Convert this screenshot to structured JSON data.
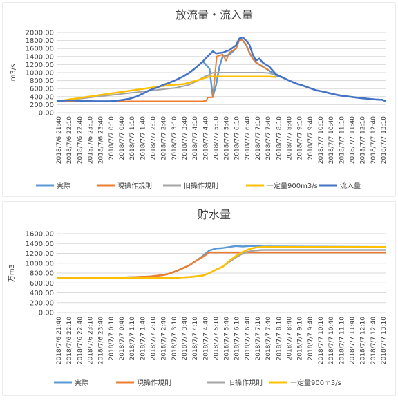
{
  "chart_data": [
    {
      "type": "line",
      "title": "放流量・流入量",
      "xlabel": "",
      "ylabel": "m3/s",
      "ylim": [
        0,
        2000
      ],
      "ystep": 200,
      "y_tick_labels": [
        "0.00",
        "200.00",
        "400.00",
        "600.00",
        "800.00",
        "1000.00",
        "1200.00",
        "1400.00",
        "1600.00",
        "1800.00",
        "2000.00"
      ],
      "x_tick_labels": [
        "2018/7/6 21:40",
        "2018/7/6 22:10",
        "2018/7/6 22:40",
        "2018/7/6 23:10",
        "2018/7/6 23:40",
        "2018/7/7 0:10",
        "2018/7/7 0:40",
        "2018/7/7 1:10",
        "2018/7/7 1:40",
        "2018/7/7 2:10",
        "2018/7/7 2:40",
        "2018/7/7 3:10",
        "2018/7/7 3:40",
        "2018/7/7 4:10",
        "2018/7/7 4:40",
        "2018/7/7 5:10",
        "2018/7/7 5:40",
        "2018/7/7 6:10",
        "2018/7/7 6:40",
        "2018/7/7 7:10",
        "2018/7/7 7:40",
        "2018/7/7 8:10",
        "2018/7/7 8:40",
        "2018/7/7 9:10",
        "2018/7/7 9:40",
        "2018/7/7 10:10",
        "2018/7/7 10:40",
        "2018/7/7 11:10",
        "2018/7/7 11:40",
        "2018/7/7 12:10",
        "2018/7/7 12:40",
        "2018/7/7 13:10"
      ],
      "grid": true,
      "legend": "bottom",
      "series": [
        {
          "name": "実際",
          "color": "#5B9BD5",
          "width": 2.5,
          "points": [
            [
              0,
              290
            ],
            [
              2,
              295
            ],
            [
              4,
              300
            ],
            [
              6,
              300
            ],
            [
              8,
              290
            ],
            [
              10,
              285
            ],
            [
              12,
              285
            ],
            [
              14,
              285
            ],
            [
              16,
              285
            ],
            [
              18,
              300
            ],
            [
              20,
              320
            ],
            [
              22,
              350
            ],
            [
              24,
              400
            ],
            [
              26,
              480
            ],
            [
              28,
              560
            ],
            [
              30,
              620
            ],
            [
              32,
              690
            ],
            [
              34,
              750
            ],
            [
              36,
              820
            ],
            [
              38,
              900
            ],
            [
              40,
              1000
            ],
            [
              42,
              1130
            ],
            [
              44,
              1280
            ],
            [
              46,
              1100
            ],
            [
              47,
              400
            ],
            [
              48,
              700
            ],
            [
              49,
              1150
            ],
            [
              50,
              1400
            ],
            [
              52,
              1450
            ],
            [
              54,
              1600
            ],
            [
              55,
              1820
            ],
            [
              56,
              1800
            ],
            [
              57,
              1700
            ],
            [
              58,
              1500
            ],
            [
              59,
              1350
            ],
            [
              60,
              1250
            ],
            [
              62,
              1150
            ],
            [
              64,
              1050
            ],
            [
              66,
              930
            ],
            [
              68,
              880
            ],
            [
              70,
              800
            ],
            [
              72,
              730
            ],
            [
              74,
              680
            ],
            [
              76,
              620
            ],
            [
              78,
              560
            ],
            [
              80,
              530
            ],
            [
              82,
              490
            ],
            [
              84,
              450
            ],
            [
              86,
              420
            ],
            [
              88,
              400
            ],
            [
              90,
              380
            ],
            [
              92,
              360
            ],
            [
              94,
              345
            ],
            [
              96,
              330
            ],
            [
              98,
              320
            ],
            [
              99,
              290
            ]
          ]
        },
        {
          "name": "現操作規則",
          "color": "#ED7D31",
          "width": 2,
          "points": [
            [
              0,
              285
            ],
            [
              44,
              285
            ],
            [
              45,
              300
            ],
            [
              45.5,
              380
            ],
            [
              47,
              385
            ],
            [
              48.2,
              1400
            ],
            [
              49,
              1430
            ],
            [
              50,
              1450
            ],
            [
              51,
              1300
            ],
            [
              52,
              1500
            ],
            [
              54,
              1600
            ],
            [
              55,
              1820
            ],
            [
              56,
              1800
            ],
            [
              57,
              1700
            ],
            [
              58,
              1500
            ],
            [
              59,
              1350
            ],
            [
              60,
              1250
            ],
            [
              62,
              1150
            ],
            [
              64,
              1050
            ]
          ]
        },
        {
          "name": "旧操作規則",
          "color": "#A5A5A5",
          "width": 2,
          "points": [
            [
              0,
              285
            ],
            [
              36,
              620
            ],
            [
              40,
              700
            ],
            [
              42,
              780
            ],
            [
              44,
              880
            ],
            [
              46,
              950
            ],
            [
              47,
              1000
            ],
            [
              62,
              1000
            ],
            [
              64,
              990
            ],
            [
              66,
              930
            ]
          ]
        },
        {
          "name": "一定量900m3/s",
          "color": "#FFC000",
          "width": 2.5,
          "points": [
            [
              0,
              285
            ],
            [
              34,
              690
            ],
            [
              36,
              700
            ],
            [
              38,
              710
            ],
            [
              40,
              750
            ],
            [
              42,
              800
            ],
            [
              44,
              850
            ],
            [
              46,
              900
            ],
            [
              62,
              900
            ],
            [
              64,
              900
            ],
            [
              66,
              890
            ]
          ]
        },
        {
          "name": "流入量",
          "color": "#4472C4",
          "width": 2.5,
          "points": [
            [
              0,
              290
            ],
            [
              2,
              300
            ],
            [
              4,
              310
            ],
            [
              6,
              300
            ],
            [
              8,
              295
            ],
            [
              10,
              290
            ],
            [
              12,
              285
            ],
            [
              14,
              285
            ],
            [
              16,
              285
            ],
            [
              18,
              300
            ],
            [
              20,
              320
            ],
            [
              22,
              350
            ],
            [
              24,
              400
            ],
            [
              26,
              480
            ],
            [
              28,
              560
            ],
            [
              30,
              620
            ],
            [
              32,
              690
            ],
            [
              34,
              750
            ],
            [
              36,
              820
            ],
            [
              38,
              900
            ],
            [
              40,
              1000
            ],
            [
              42,
              1130
            ],
            [
              44,
              1280
            ],
            [
              46,
              1450
            ],
            [
              47,
              1530
            ],
            [
              48,
              1480
            ],
            [
              50,
              1500
            ],
            [
              52,
              1560
            ],
            [
              54,
              1680
            ],
            [
              55,
              1850
            ],
            [
              56,
              1880
            ],
            [
              57,
              1800
            ],
            [
              58,
              1700
            ],
            [
              59,
              1450
            ],
            [
              60,
              1300
            ],
            [
              61,
              1350
            ],
            [
              62,
              1250
            ],
            [
              64,
              1150
            ],
            [
              66,
              960
            ],
            [
              68,
              880
            ],
            [
              70,
              800
            ],
            [
              72,
              730
            ],
            [
              74,
              680
            ],
            [
              76,
              620
            ],
            [
              78,
              560
            ],
            [
              80,
              530
            ],
            [
              82,
              490
            ],
            [
              84,
              450
            ],
            [
              86,
              420
            ],
            [
              88,
              400
            ],
            [
              90,
              380
            ],
            [
              92,
              360
            ],
            [
              94,
              345
            ],
            [
              96,
              330
            ],
            [
              98,
              320
            ],
            [
              99,
              290
            ]
          ]
        }
      ]
    },
    {
      "type": "line",
      "title": "貯水量",
      "xlabel": "",
      "ylabel": "万m3",
      "ylim": [
        0,
        1600
      ],
      "ystep": 200,
      "y_tick_labels": [
        "0.00",
        "200.00",
        "400.00",
        "600.00",
        "800.00",
        "1000.00",
        "1200.00",
        "1400.00",
        "1600.00"
      ],
      "x_tick_labels": [
        "2018/7/6 21:40",
        "2018/7/6 22:10",
        "2018/7/6 22:40",
        "2018/7/6 23:10",
        "2018/7/6 23:40",
        "2018/7/7 0:10",
        "2018/7/7 0:40",
        "2018/7/7 1:10",
        "2018/7/7 1:40",
        "2018/7/7 2:10",
        "2018/7/7 2:40",
        "2018/7/7 3:10",
        "2018/7/7 3:40",
        "2018/7/7 4:10",
        "2018/7/7 4:40",
        "2018/7/7 5:10",
        "2018/7/7 5:40",
        "2018/7/7 6:10",
        "2018/7/7 6:40",
        "2018/7/7 7:10",
        "2018/7/7 7:40",
        "2018/7/7 8:10",
        "2018/7/7 8:40",
        "2018/7/7 9:10",
        "2018/7/7 9:40",
        "2018/7/7 10:10",
        "2018/7/7 10:40",
        "2018/7/7 11:10",
        "2018/7/7 11:40",
        "2018/7/7 12:10",
        "2018/7/7 12:40",
        "2018/7/7 13:10"
      ],
      "grid": true,
      "legend": "bottom",
      "series": [
        {
          "name": "実際",
          "color": "#5B9BD5",
          "width": 2.5,
          "points": [
            [
              0,
              700
            ],
            [
              10,
              705
            ],
            [
              20,
              710
            ],
            [
              28,
              730
            ],
            [
              32,
              760
            ],
            [
              34,
              790
            ],
            [
              36,
              840
            ],
            [
              38,
              900
            ],
            [
              40,
              960
            ],
            [
              42,
              1050
            ],
            [
              44,
              1150
            ],
            [
              46,
              1260
            ],
            [
              48,
              1300
            ],
            [
              50,
              1310
            ],
            [
              52,
              1330
            ],
            [
              54,
              1350
            ],
            [
              56,
              1340
            ],
            [
              58,
              1350
            ],
            [
              60,
              1350
            ],
            [
              62,
              1340
            ],
            [
              99,
              1330
            ]
          ]
        },
        {
          "name": "現操作規則",
          "color": "#ED7D31",
          "width": 2.5,
          "points": [
            [
              0,
              695
            ],
            [
              10,
              700
            ],
            [
              20,
              710
            ],
            [
              28,
              730
            ],
            [
              32,
              760
            ],
            [
              34,
              790
            ],
            [
              36,
              840
            ],
            [
              38,
              900
            ],
            [
              40,
              960
            ],
            [
              42,
              1050
            ],
            [
              44,
              1130
            ],
            [
              46,
              1220
            ],
            [
              99,
              1220
            ]
          ]
        },
        {
          "name": "旧操作規則",
          "color": "#A5A5A5",
          "width": 2.5,
          "points": [
            [
              0,
              700
            ],
            [
              20,
              700
            ],
            [
              36,
              705
            ],
            [
              40,
              720
            ],
            [
              44,
              750
            ],
            [
              46,
              800
            ],
            [
              48,
              870
            ],
            [
              50,
              930
            ],
            [
              52,
              1030
            ],
            [
              54,
              1120
            ],
            [
              56,
              1200
            ],
            [
              58,
              1240
            ],
            [
              60,
              1260
            ],
            [
              62,
              1270
            ],
            [
              99,
              1270
            ]
          ]
        },
        {
          "name": "一定量900m3/s",
          "color": "#FFC000",
          "width": 2.5,
          "points": [
            [
              0,
              695
            ],
            [
              20,
              700
            ],
            [
              36,
              705
            ],
            [
              40,
              720
            ],
            [
              44,
              750
            ],
            [
              46,
              800
            ],
            [
              48,
              870
            ],
            [
              50,
              930
            ],
            [
              52,
              1050
            ],
            [
              54,
              1150
            ],
            [
              56,
              1230
            ],
            [
              58,
              1290
            ],
            [
              60,
              1320
            ],
            [
              62,
              1330
            ],
            [
              99,
              1330
            ]
          ]
        }
      ]
    }
  ]
}
